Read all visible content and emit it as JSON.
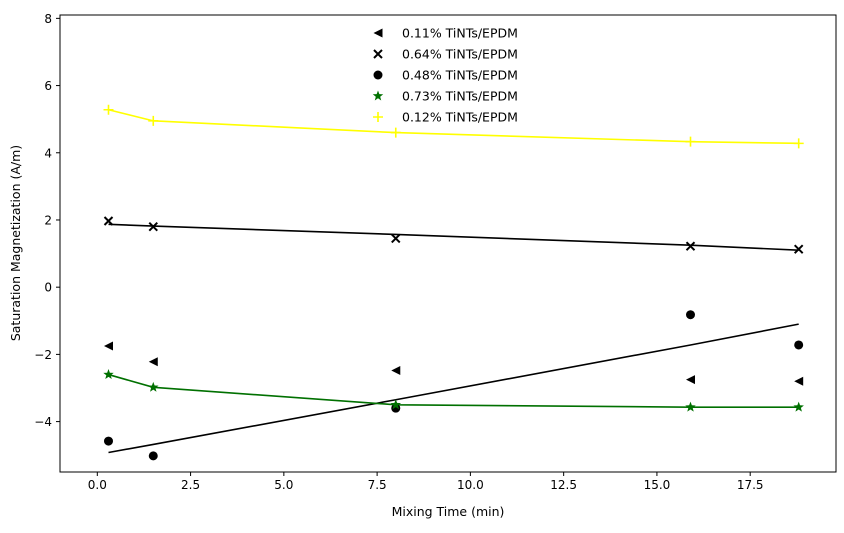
{
  "chart_data": {
    "type": "scatter",
    "xlabel": "Mixing Time (min)",
    "ylabel": "Saturation Magnetization (A/m)",
    "xlim": [
      -1.0,
      19.8
    ],
    "ylim": [
      -5.5,
      8.1
    ],
    "xticks": [
      0.0,
      2.5,
      5.0,
      7.5,
      10.0,
      12.5,
      15.0,
      17.5
    ],
    "xtick_labels": [
      "0.0",
      "2.5",
      "5.0",
      "7.5",
      "10.0",
      "12.5",
      "15.0",
      "17.5"
    ],
    "yticks": [
      -4,
      -2,
      0,
      2,
      4,
      6,
      8
    ],
    "ytick_labels": [
      "−4",
      "−2",
      "0",
      "2",
      "4",
      "6",
      "8"
    ],
    "grid": false,
    "legend_position": "top-center",
    "x": [
      0.3,
      1.5,
      8.0,
      15.9,
      18.8
    ],
    "series": [
      {
        "name": "0.11% TiNTs/EPDM",
        "marker": "triangle-left",
        "color": "#000000",
        "values": [
          -1.75,
          -2.22,
          -2.48,
          -2.75,
          -2.8
        ],
        "fit": null
      },
      {
        "name": "0.64% TiNTs/EPDM",
        "marker": "x",
        "color": "#000000",
        "values": [
          1.97,
          1.8,
          1.45,
          1.22,
          1.13
        ],
        "fit": {
          "color": "#000000",
          "values": [
            1.87,
            1.82,
            1.57,
            1.25,
            1.1
          ]
        }
      },
      {
        "name": "0.48% TiNTs/EPDM",
        "marker": "circle",
        "color": "#000000",
        "values": [
          -4.58,
          -5.02,
          -3.6,
          -0.82,
          -1.72
        ],
        "fit": {
          "color": "#000000",
          "values": [
            -4.92,
            -4.68,
            -3.35,
            -1.72,
            -1.1
          ]
        }
      },
      {
        "name": "0.73% TiNTs/EPDM",
        "marker": "star",
        "color": "#007000",
        "values": [
          -2.6,
          -2.98,
          -3.5,
          -3.57,
          -3.57
        ],
        "fit": {
          "color": "#007000",
          "values": [
            -2.6,
            -2.98,
            -3.5,
            -3.57,
            -3.57
          ]
        }
      },
      {
        "name": "0.12% TiNTs/EPDM",
        "marker": "plus",
        "color": "#ffff00",
        "values": [
          5.28,
          4.95,
          4.6,
          4.33,
          4.28
        ],
        "fit": {
          "color": "#ffff00",
          "values": [
            5.28,
            4.95,
            4.6,
            4.33,
            4.28
          ]
        }
      }
    ]
  }
}
